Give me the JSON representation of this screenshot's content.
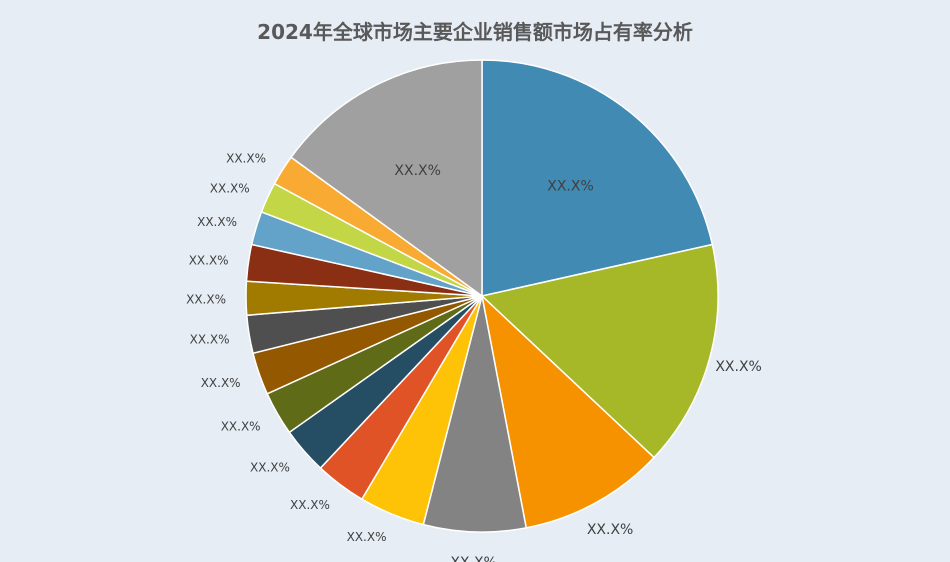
{
  "chart_data": {
    "type": "pie",
    "title": "2024年全球市场主要企业销售额市场占有率分析",
    "slices": [
      {
        "label": "XX.X%",
        "value": 21.5,
        "color": "#418ab3"
      },
      {
        "label": "XX.X%",
        "value": 15.5,
        "color": "#a6b727"
      },
      {
        "label": "XX.X%",
        "value": 10.0,
        "color": "#f69200"
      },
      {
        "label": "XX.X%",
        "value": 7.0,
        "color": "#838383"
      },
      {
        "label": "XX.X%",
        "value": 4.5,
        "color": "#fec306"
      },
      {
        "label": "XX.X%",
        "value": 3.5,
        "color": "#df5327"
      },
      {
        "label": "XX.X%",
        "value": 3.2,
        "color": "#254e65"
      },
      {
        "label": "XX.X%",
        "value": 3.0,
        "color": "#5f6b17"
      },
      {
        "label": "XX.X%",
        "value": 2.9,
        "color": "#945800"
      },
      {
        "label": "XX.X%",
        "value": 2.6,
        "color": "#4f4f4f"
      },
      {
        "label": "XX.X%",
        "value": 2.3,
        "color": "#a17a00"
      },
      {
        "label": "XX.X%",
        "value": 2.5,
        "color": "#8b2f14"
      },
      {
        "label": "XX.X%",
        "value": 2.3,
        "color": "#63a3c9"
      },
      {
        "label": "XX.X%",
        "value": 2.1,
        "color": "#c3d645"
      },
      {
        "label": "XX.X%",
        "value": 2.1,
        "color": "#f9aa33"
      },
      {
        "label": "XX.X%",
        "value": 15.0,
        "color": "#a0a0a0"
      }
    ]
  }
}
